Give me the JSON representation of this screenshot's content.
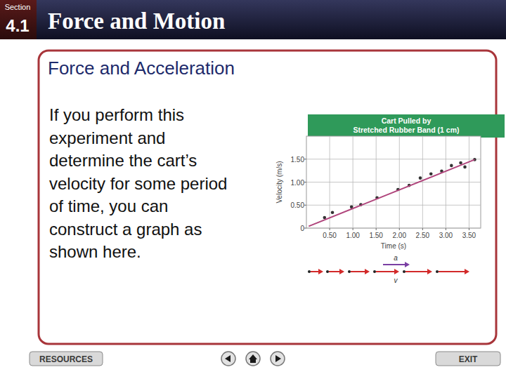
{
  "slide": {
    "section_label": "Section",
    "section_number": "4.1",
    "title": "Force and Motion",
    "heading": "Force and Acceleration",
    "body": [
      "If you perform this",
      "experiment and",
      "determine the cart’s",
      "velocity for some period",
      "of time, you can",
      "construct a graph as",
      "shown here."
    ],
    "buttons": [
      "RESOURCES",
      "EXIT"
    ]
  },
  "chart_data": {
    "type": "scatter",
    "title": [
      "Cart Pulled by",
      "Stretched Rubber Band (1 cm)"
    ],
    "x_label": "Time (s)",
    "y_label": "Velocity (m/s)",
    "xlim": [
      0,
      3.75
    ],
    "ylim": [
      0,
      2.0
    ],
    "xticks": [
      {
        "value": 0.5,
        "label": "0.50"
      },
      {
        "value": 1.0,
        "label": "1.00"
      },
      {
        "value": 1.5,
        "label": "1.50"
      },
      {
        "value": 2.0,
        "label": "2.00"
      },
      {
        "value": 2.5,
        "label": "2.50"
      },
      {
        "value": 3.0,
        "label": "3.00"
      },
      {
        "value": 3.5,
        "label": "3.50"
      }
    ],
    "yticks": [
      0,
      {
        "value": 0.5,
        "label": "0.50"
      },
      {
        "value": 1.0,
        "label": "1.00"
      },
      {
        "value": 1.5,
        "label": "1.50"
      }
    ],
    "grid": true,
    "series": [
      {
        "type": "scatter",
        "marker": "circle",
        "color": "#333333",
        "x": [
          0.39,
          0.56,
          0.97,
          1.17,
          1.52,
          1.97,
          2.21,
          2.45,
          2.68,
          2.91,
          3.12,
          3.32,
          3.41,
          3.62
        ],
        "values": [
          0.23,
          0.34,
          0.46,
          0.51,
          0.66,
          0.84,
          0.93,
          1.09,
          1.18,
          1.24,
          1.36,
          1.42,
          1.33,
          1.49
        ]
      },
      {
        "type": "line",
        "color": "#b0457c",
        "x": [
          0.05,
          3.62
        ],
        "values": [
          0.04,
          1.49
        ]
      }
    ],
    "annotations": [
      "a",
      "v"
    ]
  }
}
